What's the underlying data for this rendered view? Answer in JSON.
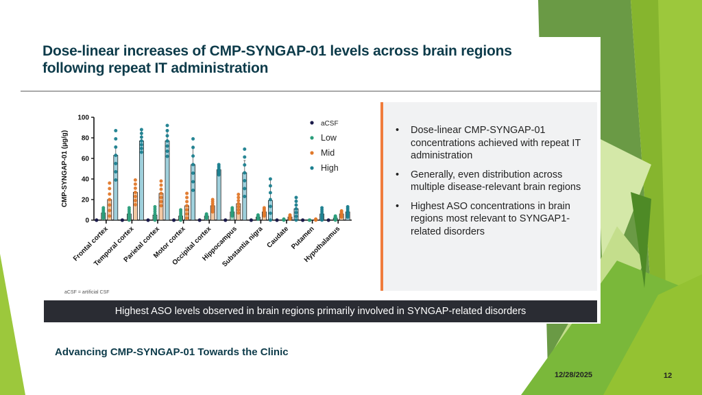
{
  "slide": {
    "title": "Dose-linear increases of CMP-SYNGAP-01 levels across brain regions following repeat IT administration",
    "footnote": "aCSF = artificial CSF",
    "bullets": [
      "Dose-linear CMP-SYNGAP-01 concentrations achieved with repeat IT administration",
      "Generally, even distribution across multiple disease-relevant brain regions",
      "Highest ASO concentrations in brain regions most relevant to SYNGAP1-related disorders"
    ],
    "bullet_glyph": "•",
    "banner": "Highest ASO levels observed in brain regions primarily involved in SYNGAP-related disorders",
    "footer_title": "Advancing CMP-SYNGAP-01 Towards the Clinic",
    "date": "12/28/2025",
    "page_number": "12",
    "colors": {
      "accent_orange": "#f07c3c",
      "title_teal": "#0d3b4a",
      "banner_bg": "#2a2c33",
      "green_dark": "#6a9a45",
      "green_light": "#9cc83c"
    }
  },
  "chart_data": {
    "type": "bar",
    "title": "",
    "xlabel": "",
    "ylabel": "CMP-SYNGAP-01 (µg/g)",
    "ylim": [
      0,
      100
    ],
    "yticks": [
      0,
      20,
      40,
      60,
      80,
      100
    ],
    "grid": false,
    "legend_position": "top-right",
    "categories": [
      "Frontal cortex",
      "Temporal cortex",
      "Parietal cortex",
      "Motor cortex",
      "Occipital cortex",
      "Hippocampus",
      "Substantia nigra",
      "Caudate",
      "Putamen",
      "Hypothalamus"
    ],
    "series": [
      {
        "name": "aCSF",
        "color": "#1a1a4a",
        "bar_fill": "#1a1a4a",
        "values": [
          0,
          0,
          0,
          0,
          0,
          0,
          0,
          0,
          0,
          0
        ]
      },
      {
        "name": "Low",
        "color": "#2a9d7a",
        "bar_fill": "#9fd7c4",
        "values": [
          7,
          6,
          5,
          4,
          4,
          8,
          3,
          0,
          0,
          2
        ]
      },
      {
        "name": "Mid",
        "color": "#e0782a",
        "bar_fill": "#f3c9a3",
        "values": [
          20,
          27,
          26,
          14,
          14,
          16,
          8,
          3,
          0,
          6
        ]
      },
      {
        "name": "High",
        "color": "#1b7f8f",
        "bar_fill": "#9fd0dc",
        "values": [
          63,
          77,
          77,
          54,
          49,
          46,
          19,
          11,
          6,
          8
        ]
      }
    ],
    "error_upper": {
      "High": [
        72,
        87,
        88,
        72,
        53,
        58,
        40,
        22,
        12,
        13
      ]
    },
    "points_max": {
      "Low": [
        12,
        12,
        13,
        10,
        6,
        12,
        5,
        1,
        0,
        4
      ],
      "Mid": [
        36,
        39,
        38,
        26,
        20,
        25,
        12,
        5,
        1,
        9
      ],
      "High": [
        87,
        88,
        92,
        79,
        54,
        69,
        40,
        22,
        12,
        13
      ]
    }
  }
}
